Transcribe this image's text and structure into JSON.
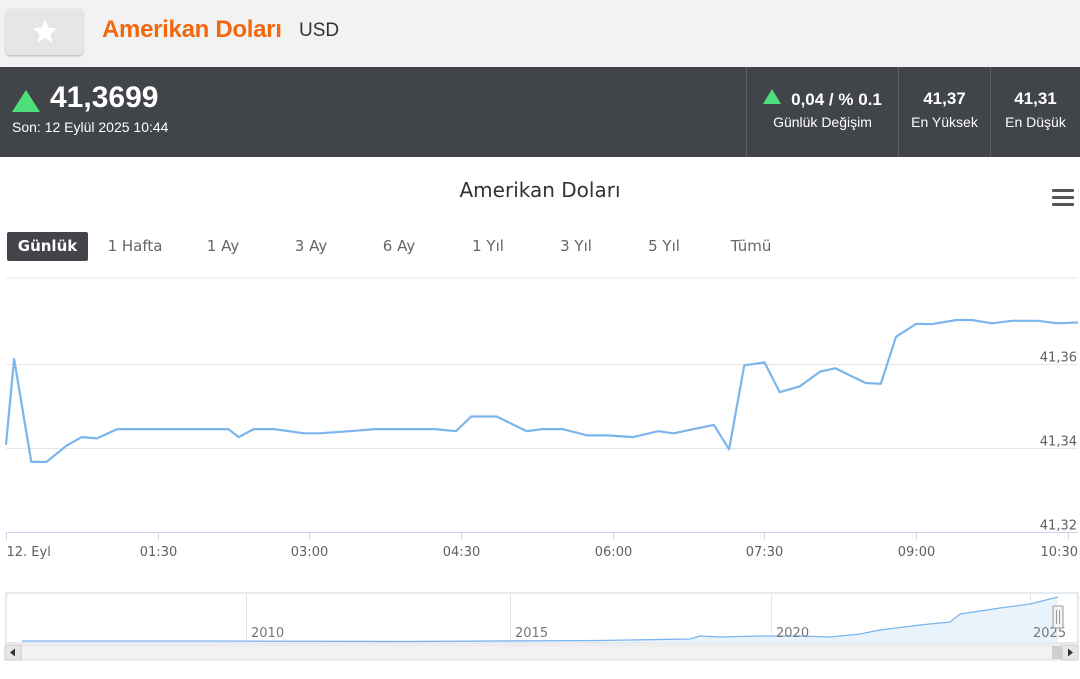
{
  "header": {
    "favorite_icon": "star-icon",
    "title": "Amerikan Doları",
    "code": "USD"
  },
  "quote": {
    "price": "41,3699",
    "last_update": "Son: 12 Eylül 2025 10:44",
    "direction_icon": "up-triangle-icon",
    "daily_change_value": "0,04 / % 0.1",
    "daily_change_label": "Günlük Değişim",
    "high_value": "41,37",
    "high_label": "En Yüksek",
    "low_value": "41,31",
    "low_label": "En Düşük",
    "colors": {
      "up": "#4cdf7b",
      "bar_bg": "#414449",
      "title": "#f0690f"
    }
  },
  "chart": {
    "title": "Amerikan Doları",
    "menu_icon": "hamburger-menu-icon",
    "ranges": [
      "Günlük",
      "1 Hafta",
      "1 Ay",
      "3 Ay",
      "6 Ay",
      "1 Yıl",
      "3 Yıl",
      "5 Yıl",
      "Tümü"
    ],
    "active_range": "Günlük"
  },
  "chart_data": {
    "type": "line",
    "title": "Amerikan Doları",
    "line_color": "#7cb5ec",
    "grid": true,
    "x_ticks": [
      "12. Eyl",
      "01:30",
      "03:00",
      "04:30",
      "06:00",
      "07:30",
      "09:00",
      "10:30"
    ],
    "x_range_hours": [
      0,
      10.6
    ],
    "y_ticks": [
      "41,36",
      "41,34",
      "41,32"
    ],
    "ylim": [
      41.32,
      41.3805
    ],
    "series": [
      {
        "x": [
          0.0,
          0.08,
          0.25,
          0.4,
          0.6,
          0.75,
          0.9,
          1.1,
          1.3,
          1.5,
          1.8,
          2.2,
          2.3,
          2.45,
          2.65,
          2.95,
          3.1,
          3.4,
          3.65,
          3.95,
          4.25,
          4.45,
          4.6,
          4.85,
          5.15,
          5.3,
          5.5,
          5.75,
          5.95,
          6.2,
          6.45,
          6.6,
          6.8,
          7.0,
          7.15,
          7.3,
          7.5,
          7.65,
          7.85,
          8.05,
          8.2,
          8.5,
          8.65,
          8.8,
          9.0,
          9.15,
          9.4,
          9.55,
          9.75,
          9.95,
          10.2,
          10.4,
          10.6
        ],
        "y": [
          41.3408,
          41.3612,
          41.3367,
          41.3367,
          41.3406,
          41.3426,
          41.3423,
          41.3445,
          41.3445,
          41.3445,
          41.3445,
          41.3445,
          41.3426,
          41.3445,
          41.3445,
          41.3435,
          41.3435,
          41.344,
          41.3445,
          41.3445,
          41.3445,
          41.344,
          41.3475,
          41.3475,
          41.344,
          41.3445,
          41.3445,
          41.343,
          41.343,
          41.3426,
          41.344,
          41.3435,
          41.3445,
          41.3455,
          41.3397,
          41.3597,
          41.3604,
          41.3533,
          41.3547,
          41.3582,
          41.359,
          41.3555,
          41.3553,
          41.3665,
          41.3696,
          41.3695,
          41.3705,
          41.3705,
          41.3697,
          41.3703,
          41.3703,
          41.3697,
          41.3699
        ]
      }
    ]
  },
  "navigator": {
    "year_labels": [
      "2010",
      "2015",
      "2020",
      "2025"
    ],
    "scroll_left_icon": "triangle-left-icon",
    "scroll_right_icon": "triangle-right-icon",
    "handle_icon": "navigator-handle-icon"
  }
}
